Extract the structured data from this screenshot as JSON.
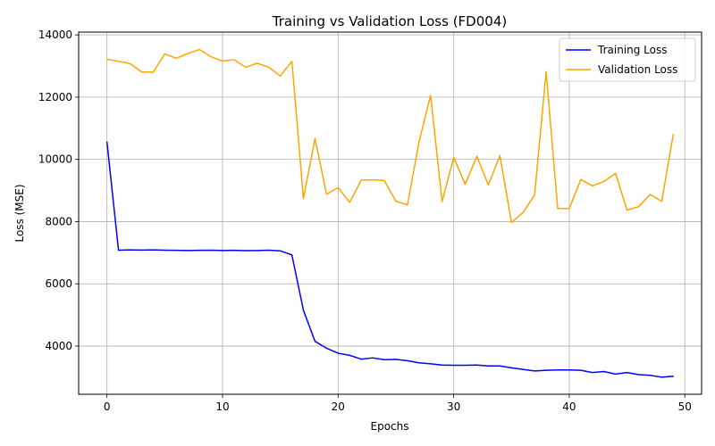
{
  "chart_data": {
    "type": "line",
    "title": "Training vs Validation Loss (FD004)",
    "xlabel": "Epochs",
    "ylabel": "Loss (MSE)",
    "xlim": [
      -2.45,
      51.45
    ],
    "ylim": [
      2450,
      14090
    ],
    "xticks": [
      0,
      10,
      20,
      30,
      40,
      50
    ],
    "yticks": [
      4000,
      6000,
      8000,
      10000,
      12000,
      14000
    ],
    "grid": true,
    "legend_position": "top-right",
    "x": [
      0,
      1,
      2,
      3,
      4,
      5,
      6,
      7,
      8,
      9,
      10,
      11,
      12,
      13,
      14,
      15,
      16,
      17,
      18,
      19,
      20,
      21,
      22,
      23,
      24,
      25,
      26,
      27,
      28,
      29,
      30,
      31,
      32,
      33,
      34,
      35,
      36,
      37,
      38,
      39,
      40,
      41,
      42,
      43,
      44,
      45,
      46,
      47,
      48,
      49
    ],
    "series": [
      {
        "name": "Training Loss",
        "color": "#0000ff",
        "values": [
          10560,
          7080,
          7090,
          7085,
          7090,
          7080,
          7075,
          7070,
          7075,
          7080,
          7070,
          7075,
          7065,
          7070,
          7080,
          7060,
          6930,
          5150,
          4150,
          3930,
          3770,
          3700,
          3580,
          3620,
          3560,
          3570,
          3530,
          3460,
          3430,
          3390,
          3380,
          3380,
          3390,
          3360,
          3360,
          3300,
          3250,
          3200,
          3220,
          3230,
          3230,
          3220,
          3150,
          3180,
          3100,
          3150,
          3080,
          3060,
          3000,
          3030
        ]
      },
      {
        "name": "Validation Loss",
        "color": "#ffa500",
        "values": [
          13220,
          13150,
          13080,
          12810,
          12800,
          13390,
          13250,
          13400,
          13530,
          13300,
          13160,
          13200,
          12960,
          13090,
          12960,
          12680,
          13150,
          8740,
          10670,
          8880,
          9090,
          8620,
          9330,
          9340,
          9320,
          8650,
          8540,
          10560,
          12060,
          8640,
          10060,
          9200,
          10100,
          9180,
          10120,
          7970,
          8290,
          8850,
          12820,
          8420,
          8420,
          9350,
          9150,
          9290,
          9550,
          8370,
          8480,
          8870,
          8650,
          10800
        ]
      }
    ]
  }
}
